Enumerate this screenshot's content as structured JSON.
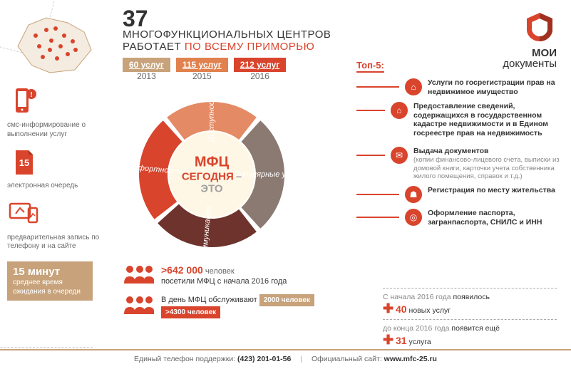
{
  "header": {
    "number": "37",
    "line1": "МНОГОФУНКЦИОНАЛЬНЫХ ЦЕНТРОВ",
    "line2_a": "РАБОТАЕТ",
    "line2_b": "ПО ВСЕМУ ПРИМОРЬЮ"
  },
  "years": [
    {
      "chip": "60 услуг",
      "year": "2013",
      "color": "#c7a27a"
    },
    {
      "chip": "115 услуг",
      "year": "2015",
      "color": "#e0814e"
    },
    {
      "chip": "212 услуг",
      "year": "2016",
      "color": "#d9442c"
    }
  ],
  "logo": {
    "line1": "МОИ",
    "line2": "документы"
  },
  "features": {
    "sms": "смс-информирование о выполнении услуг",
    "queue_tile": "15",
    "queue": "электронная очередь",
    "booking": "предварительная запись по телефону и на сайте"
  },
  "wait": {
    "big": "15 минут",
    "rest": "среднее время ожидания в очереди"
  },
  "donut": {
    "center_l1": "МФЦ",
    "center_l2": "СЕГОДНЯ",
    "center_l3": "– ЭТО",
    "segments": [
      {
        "label": "Доступность",
        "color": "#e48a64",
        "angle": 80
      },
      {
        "label": "Популярные услуги",
        "color": "#8a7a72",
        "angle": 100
      },
      {
        "label": "Коммуникация",
        "color": "#6e332c",
        "angle": 90
      },
      {
        "label": "Комфортность",
        "color": "#d9442c",
        "angle": 90
      }
    ],
    "inner_r": 62,
    "outer_r": 102,
    "center_bg": "#fff7e5"
  },
  "top5": {
    "title": "Топ-5:",
    "items": [
      {
        "text": "Услуги по госрегистрации прав на недвижимое имущество"
      },
      {
        "text": "Предоставление сведений, содержащихся в государственном кадастре недвижимости и в Едином госреестре прав на недвижимость"
      },
      {
        "text": "Выдача документов",
        "sub": "(копии финансово-лицевого счета, выписки из домовой книги, карточки учета собственника жилого помещения, справок и т.д.)"
      },
      {
        "text": "Регистрация по месту жительства"
      },
      {
        "text": "Оформление паспорта, загранпаспорта, СНИЛС и ИНН"
      }
    ]
  },
  "stats": {
    "visitors_num": ">642 000",
    "visitors_unit": "человек",
    "visitors_text": "посетили МФЦ с начала 2016 года",
    "daily_label": "В день МФЦ обслуживают",
    "daily_2014": "2000 человек",
    "daily_2016": ">4300 человек"
  },
  "plus": {
    "r1_pre": "С начала 2016 года",
    "r1_post": "появилось",
    "r1_num": "40",
    "r1_unit": "новых услуг",
    "r2_pre": "до конца 2016 года",
    "r2_post": "появится ещё",
    "r2_num": "31",
    "r2_unit": "услуга"
  },
  "footer": {
    "phone_label": "Единый телефон поддержки:",
    "phone": "(423) 201-01-56",
    "site_label": "Официальный сайт:",
    "site": "www.mfc-25.ru"
  }
}
